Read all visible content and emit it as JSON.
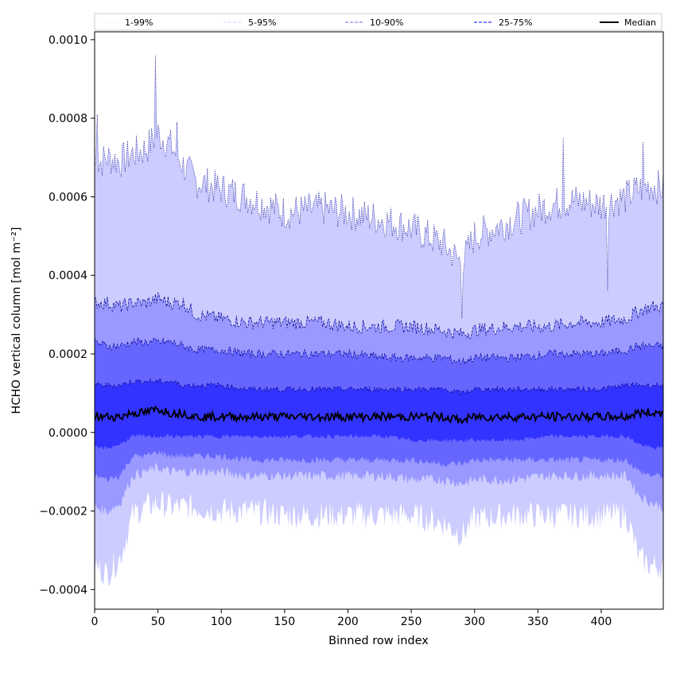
{
  "chart_data": {
    "type": "area",
    "xlabel": "Binned row index",
    "ylabel": "HCHO vertical column [mol m⁻²]",
    "xlim": [
      0,
      449
    ],
    "ylim": [
      -0.00045,
      0.00102
    ],
    "x_ticks": [
      0,
      50,
      100,
      150,
      200,
      250,
      300,
      350,
      400
    ],
    "x_tick_labels": [
      "0",
      "50",
      "100",
      "150",
      "200",
      "250",
      "300",
      "350",
      "400"
    ],
    "y_ticks": [
      -0.0004,
      -0.0002,
      0.0,
      0.0002,
      0.0004,
      0.0006,
      0.0008,
      0.001
    ],
    "y_tick_labels": [
      "−0.0004",
      "−0.0002",
      "0.0000",
      "0.0002",
      "0.0004",
      "0.0006",
      "0.0008",
      "0.0010"
    ],
    "legend_position": "top-outside",
    "grid": false,
    "x_key": [
      0,
      10,
      20,
      30,
      40,
      50,
      60,
      70,
      80,
      100,
      120,
      150,
      180,
      200,
      230,
      250,
      275,
      290,
      300,
      330,
      360,
      380,
      400,
      420,
      430,
      440,
      449
    ],
    "series": [
      {
        "name": "1-99%",
        "color": "#ccccff",
        "line_style": "dotted",
        "upper": [
          0.00068,
          0.0007,
          0.00069,
          0.00071,
          0.00072,
          0.00076,
          0.00073,
          0.00068,
          0.00064,
          0.00062,
          0.0006,
          0.00056,
          0.00057,
          0.00056,
          0.00054,
          0.00052,
          0.00048,
          0.00043,
          0.0005,
          0.00054,
          0.00058,
          0.00059,
          0.00058,
          0.0006,
          0.00062,
          0.00063,
          0.00062
        ],
        "lower": [
          -0.00034,
          -0.00036,
          -0.00032,
          -0.00021,
          -0.00019,
          -0.00018,
          -0.00019,
          -0.00019,
          -0.00019,
          -0.0002,
          -0.0002,
          -0.00021,
          -0.00021,
          -0.00021,
          -0.00021,
          -0.00021,
          -0.00023,
          -0.00026,
          -0.00022,
          -0.00021,
          -0.00021,
          -0.00021,
          -0.00021,
          -0.00021,
          -0.00032,
          -0.00034,
          -0.00034
        ]
      },
      {
        "name": "5-95%",
        "color": "#9999ff",
        "line_style": "dashed",
        "upper": [
          0.00033,
          0.00033,
          0.00032,
          0.00033,
          0.00033,
          0.00034,
          0.00033,
          0.00033,
          0.0003,
          0.00029,
          0.00028,
          0.00028,
          0.00028,
          0.00027,
          0.00027,
          0.00027,
          0.00026,
          0.00025,
          0.00026,
          0.00027,
          0.00027,
          0.00028,
          0.00028,
          0.00029,
          0.00031,
          0.00032,
          0.00032
        ],
        "lower": [
          -0.00019,
          -0.0002,
          -0.00018,
          -0.00011,
          -0.0001,
          -9e-05,
          -0.0001,
          -0.0001,
          -0.0001,
          -0.0001,
          -0.00011,
          -0.00011,
          -0.00011,
          -0.00011,
          -0.00011,
          -0.00012,
          -0.00012,
          -0.00013,
          -0.00012,
          -0.00012,
          -0.00011,
          -0.00011,
          -0.00011,
          -0.00011,
          -0.00016,
          -0.00018,
          -0.00019
        ]
      },
      {
        "name": "10-90%",
        "color": "#6666ff",
        "line_style": "dashed",
        "upper": [
          0.00023,
          0.00022,
          0.00022,
          0.00023,
          0.00023,
          0.00023,
          0.00023,
          0.00022,
          0.00021,
          0.00021,
          0.0002,
          0.0002,
          0.0002,
          0.0002,
          0.00019,
          0.00019,
          0.00019,
          0.00018,
          0.00019,
          0.00019,
          0.0002,
          0.0002,
          0.0002,
          0.00021,
          0.00022,
          0.00022,
          0.00022
        ],
        "lower": [
          -0.00011,
          -0.00012,
          -0.00011,
          -6e-05,
          -6e-05,
          -5e-05,
          -6e-05,
          -6e-05,
          -6e-05,
          -6e-05,
          -7e-05,
          -7e-05,
          -7e-05,
          -7e-05,
          -7e-05,
          -7e-05,
          -8e-05,
          -8e-05,
          -7e-05,
          -7e-05,
          -7e-05,
          -7e-05,
          -7e-05,
          -7e-05,
          -0.0001,
          -0.00011,
          -0.00011
        ]
      },
      {
        "name": "25-75%",
        "color": "#3333ff",
        "line_style": "dashed",
        "upper": [
          0.00012,
          0.00012,
          0.00012,
          0.00013,
          0.00013,
          0.00013,
          0.00013,
          0.00012,
          0.00012,
          0.00012,
          0.00011,
          0.00011,
          0.00011,
          0.00011,
          0.00011,
          0.00011,
          0.00011,
          0.0001,
          0.00011,
          0.00011,
          0.00011,
          0.00011,
          0.00011,
          0.00012,
          0.00012,
          0.00012,
          0.00012
        ],
        "lower": [
          -4e-05,
          -4e-05,
          -3e-05,
          -1e-05,
          -1e-05,
          -1e-05,
          -1e-05,
          -1e-05,
          -1e-05,
          -1e-05,
          -1e-05,
          -1e-05,
          -1e-05,
          -1e-05,
          -1e-05,
          -2e-05,
          -2e-05,
          -2e-05,
          -2e-05,
          -2e-05,
          -1e-05,
          -1e-05,
          -1e-05,
          -1e-05,
          -3e-05,
          -4e-05,
          -4e-05
        ]
      },
      {
        "name": "Median",
        "color": "#000000",
        "line_style": "solid",
        "values": [
          4e-05,
          4e-05,
          4e-05,
          5e-05,
          5e-05,
          6e-05,
          5e-05,
          5e-05,
          4e-05,
          4e-05,
          4e-05,
          4e-05,
          4e-05,
          4e-05,
          4e-05,
          4e-05,
          4e-05,
          3e-05,
          4e-05,
          4e-05,
          4e-05,
          4e-05,
          4e-05,
          4e-05,
          5e-05,
          5e-05,
          5e-05
        ]
      }
    ],
    "spikes": [
      {
        "series": "1-99%",
        "x": 2,
        "y": 0.00081
      },
      {
        "series": "1-99%",
        "x": 48,
        "y": 0.00096
      },
      {
        "series": "1-99%",
        "x": 65,
        "y": 0.00079
      },
      {
        "series": "1-99%",
        "x": 290,
        "y": 0.00029
      },
      {
        "series": "1-99%",
        "x": 370,
        "y": 0.00075
      },
      {
        "series": "1-99%",
        "x": 405,
        "y": 0.00036
      },
      {
        "series": "1-99%",
        "x": 433,
        "y": 0.00074
      }
    ]
  }
}
